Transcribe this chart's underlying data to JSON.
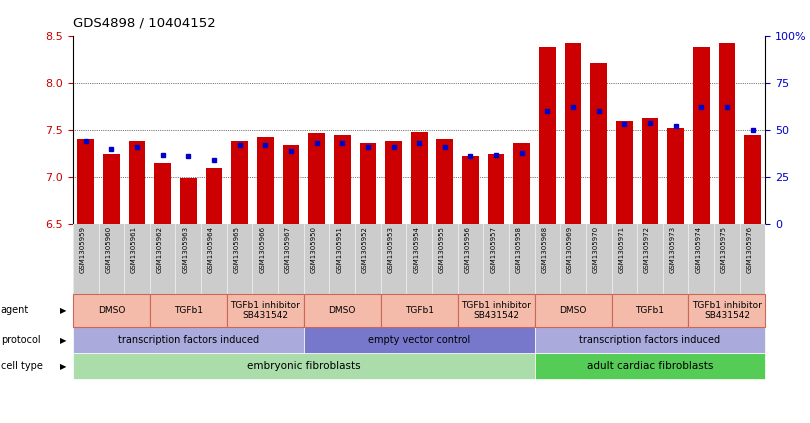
{
  "title": "GDS4898 / 10404152",
  "samples": [
    "GSM1305959",
    "GSM1305960",
    "GSM1305961",
    "GSM1305962",
    "GSM1305963",
    "GSM1305964",
    "GSM1305965",
    "GSM1305966",
    "GSM1305967",
    "GSM1305950",
    "GSM1305951",
    "GSM1305952",
    "GSM1305953",
    "GSM1305954",
    "GSM1305955",
    "GSM1305956",
    "GSM1305957",
    "GSM1305958",
    "GSM1305968",
    "GSM1305969",
    "GSM1305970",
    "GSM1305971",
    "GSM1305972",
    "GSM1305973",
    "GSM1305974",
    "GSM1305975",
    "GSM1305976"
  ],
  "transformed_count": [
    7.4,
    7.25,
    7.38,
    7.15,
    6.99,
    7.1,
    7.38,
    7.43,
    7.34,
    7.47,
    7.45,
    7.36,
    7.38,
    7.48,
    7.4,
    7.22,
    7.25,
    7.36,
    8.38,
    8.42,
    8.21,
    7.6,
    7.63,
    7.52,
    8.38,
    8.43,
    7.45
  ],
  "percentile_rank": [
    44,
    40,
    41,
    37,
    36,
    34,
    42,
    42,
    39,
    43,
    43,
    41,
    41,
    43,
    41,
    36,
    37,
    38,
    60,
    62,
    60,
    53,
    54,
    52,
    62,
    62,
    50
  ],
  "ymin": 6.5,
  "ymax": 8.5,
  "yticks_left": [
    6.5,
    7.0,
    7.5,
    8.0,
    8.5
  ],
  "yticks_right": [
    0,
    25,
    50,
    75,
    100
  ],
  "bar_color": "#cc0000",
  "dot_color": "#0000cc",
  "bar_width": 0.65,
  "cell_type_groups": [
    {
      "label": "embryonic fibroblasts",
      "start": 0,
      "end": 17,
      "color": "#aaddaa"
    },
    {
      "label": "adult cardiac fibroblasts",
      "start": 18,
      "end": 26,
      "color": "#55cc55"
    }
  ],
  "protocol_groups": [
    {
      "label": "transcription factors induced",
      "start": 0,
      "end": 8,
      "color": "#aaaadd"
    },
    {
      "label": "empty vector control",
      "start": 9,
      "end": 17,
      "color": "#7777cc"
    },
    {
      "label": "transcription factors induced",
      "start": 18,
      "end": 26,
      "color": "#aaaadd"
    }
  ],
  "agent_groups": [
    {
      "label": "DMSO",
      "start": 0,
      "end": 2
    },
    {
      "label": "TGFb1",
      "start": 3,
      "end": 5
    },
    {
      "label": "TGFb1 inhibitor\nSB431542",
      "start": 6,
      "end": 8
    },
    {
      "label": "DMSO",
      "start": 9,
      "end": 11
    },
    {
      "label": "TGFb1",
      "start": 12,
      "end": 14
    },
    {
      "label": "TGFb1 inhibitor\nSB431542",
      "start": 15,
      "end": 17
    },
    {
      "label": "DMSO",
      "start": 18,
      "end": 20
    },
    {
      "label": "TGFb1",
      "start": 21,
      "end": 23
    },
    {
      "label": "TGFb1 inhibitor\nSB431542",
      "start": 24,
      "end": 26
    }
  ],
  "agent_color": "#f4bbaa",
  "agent_border_color": "#cc6655",
  "row_labels": [
    "cell type",
    "protocol",
    "agent"
  ],
  "sample_bg_color": "#cccccc",
  "grid_color": "#000000",
  "fig_bg": "#ffffff"
}
